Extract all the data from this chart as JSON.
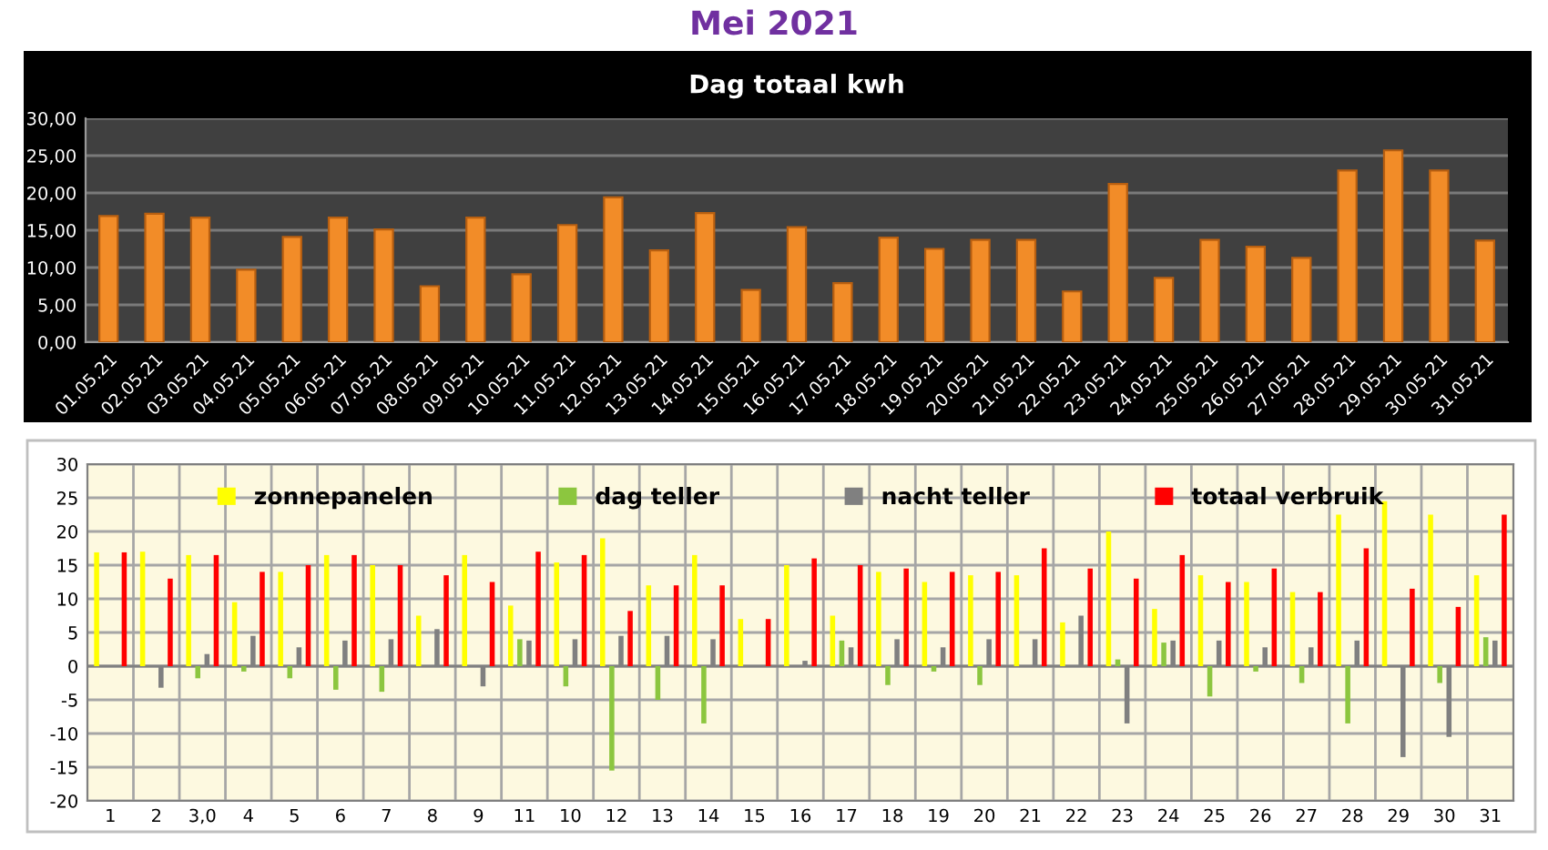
{
  "chart_data": [
    {
      "type": "bar",
      "title": "Mei 2021",
      "subtitle": "Dag totaal kwh",
      "categories": [
        "01.05.21",
        "02.05.21",
        "03.05.21",
        "04.05.21",
        "05.05.21",
        "06.05.21",
        "07.05.21",
        "08.05.21",
        "09.05.21",
        "10.05.21",
        "11.05.21",
        "12.05.21",
        "13.05.21",
        "14.05.21",
        "15.05.21",
        "16.05.21",
        "17.05.21",
        "18.05.21",
        "19.05.21",
        "20.05.21",
        "21.05.21",
        "22.05.21",
        "23.05.21",
        "24.05.21",
        "25.05.21",
        "26.05.21",
        "27.05.21",
        "28.05.21",
        "29.05.21",
        "30.05.21",
        "31.05.21"
      ],
      "values": [
        16.9,
        17.2,
        16.7,
        9.7,
        14.1,
        16.7,
        15.1,
        7.5,
        16.7,
        9.1,
        15.7,
        19.4,
        12.3,
        17.3,
        7.0,
        15.4,
        7.9,
        14.0,
        12.5,
        13.7,
        13.7,
        6.8,
        21.2,
        8.6,
        13.7,
        12.8,
        11.3,
        23.0,
        25.7,
        23.0,
        13.6
      ],
      "color": "#f28c28",
      "ylim": [
        0,
        30
      ],
      "yticks": [
        {
          "value": 0,
          "label": "0,00"
        },
        {
          "value": 5,
          "label": "5,00"
        },
        {
          "value": 10,
          "label": "10,00"
        },
        {
          "value": 15,
          "label": "15,00"
        },
        {
          "value": 20,
          "label": "20,00"
        },
        {
          "value": 25,
          "label": "25,00"
        },
        {
          "value": 30,
          "label": "30,00"
        }
      ],
      "grid": "y"
    },
    {
      "type": "bar",
      "categories": [
        "1",
        "2",
        "3,0",
        "4",
        "5",
        "6",
        "7",
        "8",
        "9",
        "11",
        "10",
        "12",
        "13",
        "14",
        "15",
        "16",
        "17",
        "18",
        "19",
        "20",
        "21",
        "22",
        "23",
        "24",
        "25",
        "26",
        "27",
        "28",
        "29",
        "30",
        "31"
      ],
      "series": [
        {
          "name": "zonnepanelen",
          "color": "#ffff00",
          "values": [
            16.9,
            17,
            16.5,
            9.5,
            14,
            16.5,
            15,
            7.5,
            16.5,
            9,
            15.4,
            19,
            12,
            16.5,
            7,
            15,
            7.5,
            14,
            12.5,
            13.5,
            13.5,
            6.5,
            20,
            8.5,
            13.5,
            12.5,
            11,
            22.5,
            24.5,
            22.5,
            13.5
          ]
        },
        {
          "name": "dag teller",
          "color": "#8cc63f",
          "values": [
            0,
            0,
            -1.8,
            -0.8,
            -1.8,
            -3.5,
            -3.8,
            0,
            0,
            4,
            -3,
            -15.5,
            -5,
            -8.5,
            0,
            0,
            3.8,
            -2.8,
            -0.8,
            -2.8,
            0,
            0,
            1,
            3.5,
            -4.5,
            -0.8,
            -2.5,
            -8.5,
            0,
            -2.5,
            4.3
          ]
        },
        {
          "name": "nacht teller",
          "color": "#808080",
          "values": [
            0,
            -3.2,
            1.8,
            4.5,
            2.8,
            3.8,
            4,
            5.5,
            -3,
            3.8,
            4,
            4.5,
            4.5,
            4,
            0,
            0.8,
            2.8,
            4,
            2.8,
            4,
            4,
            7.5,
            -8.5,
            3.8,
            3.8,
            2.8,
            2.8,
            3.8,
            -13.5,
            -10.5,
            3.8
          ]
        },
        {
          "name": "totaal verbruik",
          "color": "#ff0000",
          "values": [
            16.9,
            13,
            16.5,
            14,
            15,
            16.5,
            15,
            13.5,
            12.5,
            17,
            16.5,
            8.2,
            12,
            12,
            7,
            16,
            15,
            14.5,
            14,
            14,
            17.5,
            14.5,
            13,
            16.5,
            12.5,
            14.5,
            11,
            17.5,
            11.5,
            8.8,
            22.5
          ]
        }
      ],
      "ylim": [
        -20,
        30
      ],
      "yticks": [
        -20,
        -15,
        -10,
        -5,
        0,
        5,
        10,
        15,
        20,
        25,
        30
      ],
      "grid": true,
      "legend": "top"
    }
  ]
}
